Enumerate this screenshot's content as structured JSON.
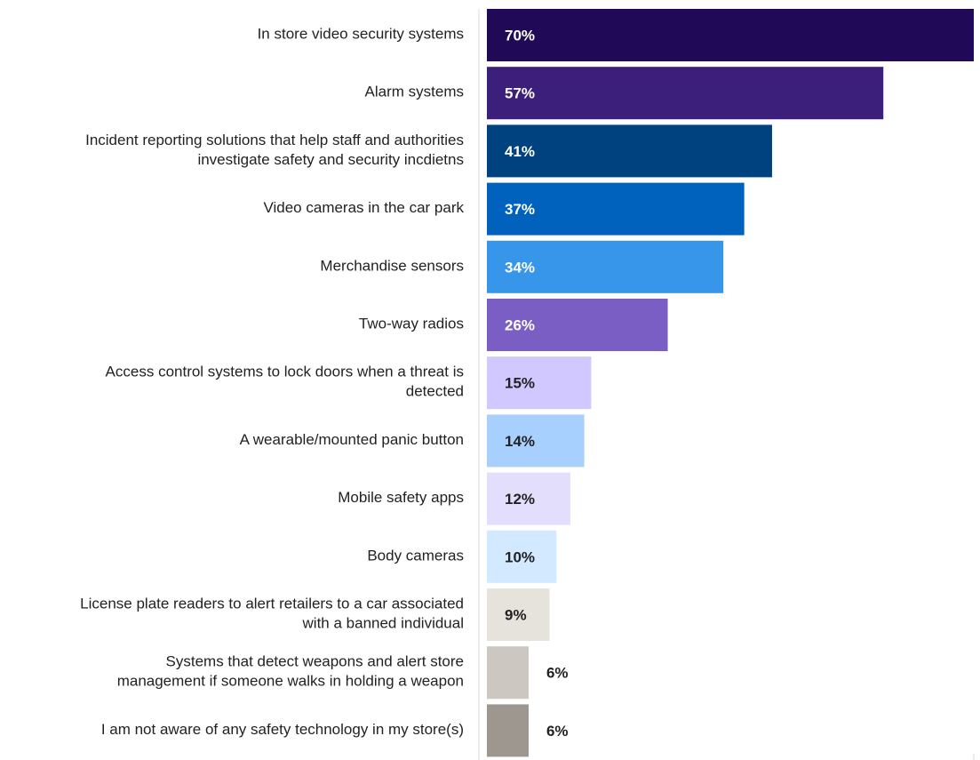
{
  "chart_data": {
    "type": "bar",
    "orientation": "horizontal",
    "categories": [
      [
        "In store video security systems"
      ],
      [
        "Alarm systems"
      ],
      [
        "Incident reporting solutions that help staff and authorities",
        "investigate safety and security incdietns"
      ],
      [
        "Video cameras in the car park"
      ],
      [
        "Merchandise sensors"
      ],
      [
        "Two-way radios"
      ],
      [
        "Access control systems to lock doors when a threat is",
        "detected"
      ],
      [
        "A wearable/mounted panic button"
      ],
      [
        "Mobile safety apps"
      ],
      [
        "Body cameras"
      ],
      [
        "License plate readers to alert retailers to a car associated",
        "with a banned individual"
      ],
      [
        "Systems that detect weapons and alert store",
        "management if someone walks in holding a weapon"
      ],
      [
        "I am not aware of any safety technology in my store(s)"
      ]
    ],
    "values": [
      70,
      57,
      41,
      37,
      34,
      26,
      15,
      14,
      12,
      10,
      9,
      6,
      6
    ],
    "value_labels": [
      "70%",
      "57%",
      "41%",
      "37%",
      "34%",
      "26%",
      "15%",
      "14%",
      "12%",
      "10%",
      "9%",
      "6%",
      "6%"
    ],
    "colors": [
      "#200a58",
      "#3b1f7b",
      "#00427f",
      "#0062bd",
      "#3896ea",
      "#7a5ec4",
      "#d0c8ff",
      "#a8d0ff",
      "#e4defd",
      "#d3e9ff",
      "#e6e2dc",
      "#ccc7c1",
      "#9d9790"
    ],
    "value_label_colors": [
      "#ffffff",
      "#ffffff",
      "#ffffff",
      "#ffffff",
      "#ffffff",
      "#ffffff",
      "#222222",
      "#222222",
      "#222222",
      "#222222",
      "#222222",
      "#222222",
      "#222222"
    ],
    "xlim": [
      0,
      70
    ],
    "grid": false,
    "legend": "none"
  }
}
